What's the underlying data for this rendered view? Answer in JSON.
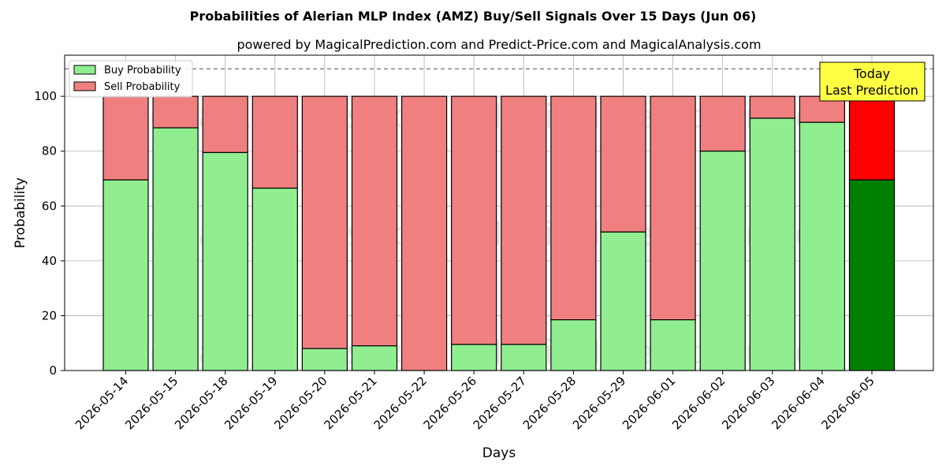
{
  "chart_data": {
    "type": "bar",
    "stacked": true,
    "title": "Probabilities of Alerian MLP Index (AMZ) Buy/Sell Signals Over 15 Days (Jun 06)",
    "subtitle": "powered by MagicalPrediction.com and Predict-Price.com and MagicalAnalysis.com",
    "xlabel": "Days",
    "ylabel": "Probability",
    "ylim": [
      0,
      115
    ],
    "yticks": [
      0,
      20,
      40,
      60,
      80,
      100
    ],
    "reference_line": 110,
    "grid": true,
    "legend_position": "top-left",
    "categories": [
      "2026-05-14",
      "2026-05-15",
      "2026-05-18",
      "2026-05-19",
      "2026-05-20",
      "2026-05-21",
      "2026-05-22",
      "2026-05-26",
      "2026-05-27",
      "2026-05-28",
      "2026-05-29",
      "2026-06-01",
      "2026-06-02",
      "2026-06-03",
      "2026-06-04",
      "2026-06-05"
    ],
    "series": [
      {
        "name": "Buy Probability",
        "values": [
          69.5,
          88.5,
          79.5,
          66.5,
          8,
          9,
          0,
          9.5,
          9.5,
          18.5,
          50.5,
          18.5,
          80,
          92,
          90.5,
          69.5
        ]
      },
      {
        "name": "Sell Probability",
        "values": [
          30.5,
          11.5,
          20.5,
          33.5,
          92,
          91,
          100,
          90.5,
          90.5,
          81.5,
          49.5,
          81.5,
          20,
          8,
          9.5,
          30.5
        ]
      }
    ],
    "colors": {
      "buy": "#90ee90",
      "sell": "#f08080",
      "buy_highlight": "#008000",
      "sell_highlight": "#ff0000",
      "annotation_bg": "#ffff44"
    },
    "annotation": {
      "line1": "Today",
      "line2": "Last Prediction"
    },
    "watermarks": [
      "MagicalAnalysis.com",
      "MagicalPrediction.com"
    ]
  }
}
